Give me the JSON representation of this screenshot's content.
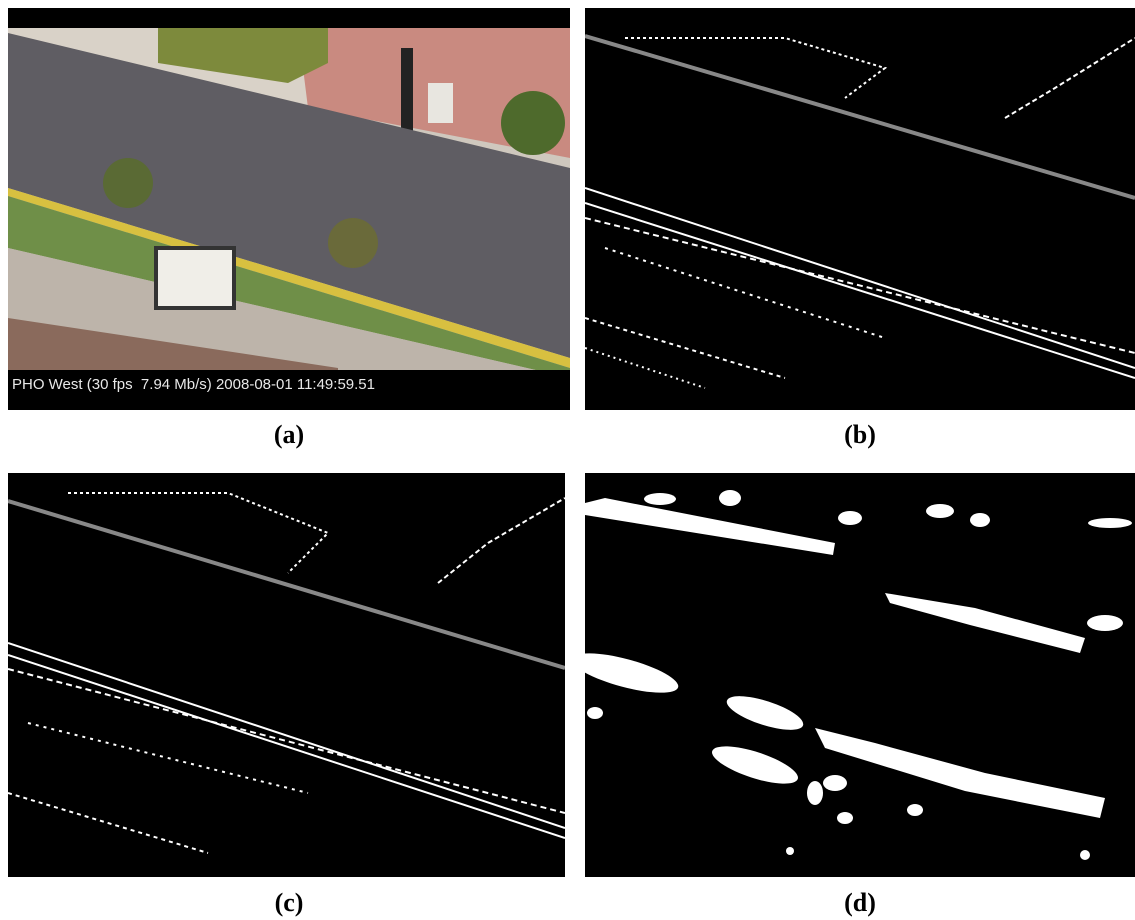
{
  "panels": [
    {
      "label": "(a)",
      "overlay": "PHO West (30 fps  7.94 Mb/s) 2008-08-01 11:49:59.51"
    },
    {
      "label": "(b)"
    },
    {
      "label": "(c)"
    },
    {
      "label": "(d)"
    }
  ]
}
